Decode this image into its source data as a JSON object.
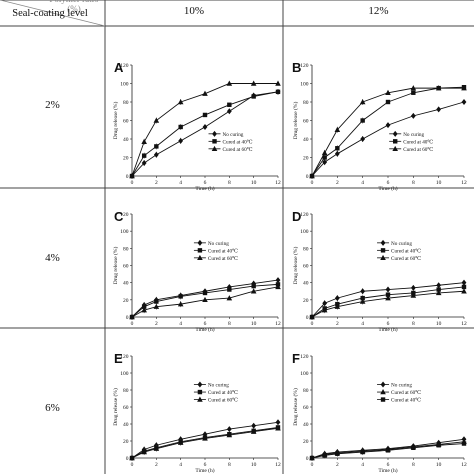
{
  "table": {
    "corner_top": "Polymer ratio (%)",
    "corner_bottom": "Seal-coating level",
    "col_headers": [
      "10%",
      "12%"
    ],
    "row_headers": [
      "2%",
      "4%",
      "6%"
    ]
  },
  "chart_common": {
    "ylabel": "Drug release (%)",
    "xlabel": "Time (h)",
    "xticks": [
      0,
      2,
      4,
      6,
      8,
      10,
      12
    ],
    "yticks": [
      0,
      20,
      40,
      60,
      80,
      100,
      120
    ],
    "series_names": [
      "No curing",
      "Cured at 40℃",
      "Cured at 60℃"
    ],
    "marker_shapes": [
      "diamond",
      "square",
      "triangle"
    ]
  },
  "chart_data": [
    {
      "type": "line",
      "panel": "A",
      "xlim": [
        0,
        12
      ],
      "ylim": [
        0,
        120
      ],
      "grid": false,
      "legend": "right-center",
      "x": [
        0,
        1,
        2,
        4,
        6,
        8,
        10,
        12
      ],
      "series": [
        {
          "name": "No curing",
          "values": [
            0,
            14,
            23,
            38,
            53,
            70,
            87,
            91
          ]
        },
        {
          "name": "Cured at 40℃",
          "values": [
            0,
            22,
            32,
            53,
            66,
            77,
            86,
            91
          ]
        },
        {
          "name": "Cured at 60℃",
          "values": [
            0,
            37,
            60,
            80,
            89,
            100,
            100,
            100
          ]
        }
      ]
    },
    {
      "type": "line",
      "panel": "B",
      "xlim": [
        0,
        12
      ],
      "ylim": [
        0,
        120
      ],
      "grid": false,
      "legend": "right-center",
      "x": [
        0,
        1,
        2,
        4,
        6,
        8,
        10,
        12
      ],
      "series": [
        {
          "name": "No curing",
          "values": [
            0,
            15,
            24,
            40,
            55,
            65,
            72,
            80
          ]
        },
        {
          "name": "Cured at 40℃",
          "values": [
            0,
            20,
            30,
            60,
            80,
            90,
            95,
            96
          ]
        },
        {
          "name": "Cured at 60℃",
          "values": [
            0,
            25,
            50,
            80,
            90,
            95,
            95,
            95
          ]
        }
      ]
    },
    {
      "type": "line",
      "panel": "C",
      "xlim": [
        0,
        12
      ],
      "ylim": [
        0,
        120
      ],
      "grid": false,
      "legend": "top-center",
      "x": [
        0,
        1,
        2,
        4,
        6,
        8,
        10,
        12
      ],
      "series": [
        {
          "name": "No curing",
          "values": [
            0,
            14,
            20,
            25,
            30,
            35,
            39,
            43
          ]
        },
        {
          "name": "Cured at 40℃",
          "values": [
            0,
            12,
            18,
            24,
            28,
            32,
            36,
            38
          ]
        },
        {
          "name": "Cured at 60℃",
          "values": [
            0,
            8,
            12,
            15,
            20,
            22,
            30,
            35
          ]
        }
      ]
    },
    {
      "type": "line",
      "panel": "D",
      "xlim": [
        0,
        12
      ],
      "ylim": [
        0,
        120
      ],
      "grid": false,
      "legend": "top-center",
      "x": [
        0,
        1,
        2,
        4,
        6,
        8,
        10,
        12
      ],
      "series": [
        {
          "name": "No curing",
          "values": [
            0,
            16,
            22,
            30,
            32,
            34,
            37,
            40
          ]
        },
        {
          "name": "Cured at 40℃",
          "values": [
            0,
            10,
            15,
            22,
            26,
            28,
            32,
            35
          ]
        },
        {
          "name": "Cured at 60℃",
          "values": [
            0,
            8,
            12,
            18,
            22,
            25,
            28,
            30
          ]
        }
      ]
    },
    {
      "type": "line",
      "panel": "E",
      "xlim": [
        0,
        12
      ],
      "ylim": [
        0,
        120
      ],
      "grid": false,
      "legend": "top-center",
      "x": [
        0,
        1,
        2,
        4,
        6,
        8,
        10,
        12
      ],
      "series": [
        {
          "name": "No curing",
          "values": [
            0,
            10,
            15,
            22,
            28,
            34,
            38,
            42
          ]
        },
        {
          "name": "Cured at 40℃",
          "values": [
            0,
            8,
            12,
            19,
            24,
            28,
            32,
            36
          ]
        },
        {
          "name": "Cured at 60℃",
          "values": [
            0,
            7,
            11,
            18,
            23,
            27,
            31,
            35
          ]
        }
      ]
    },
    {
      "type": "line",
      "panel": "F",
      "xlim": [
        0,
        12
      ],
      "ylim": [
        0,
        120
      ],
      "grid": false,
      "legend": "top-center",
      "x": [
        0,
        1,
        2,
        4,
        6,
        8,
        10,
        12
      ],
      "series": [
        {
          "name": "No curing",
          "values": [
            0,
            5,
            7,
            9,
            11,
            14,
            18,
            22
          ]
        },
        {
          "name": "Cured at 60℃",
          "values": [
            0,
            4,
            6,
            8,
            10,
            13,
            16,
            19
          ]
        },
        {
          "name": "Cured at 40℃",
          "values": [
            0,
            3,
            5,
            7,
            9,
            12,
            15,
            17
          ]
        }
      ]
    }
  ]
}
